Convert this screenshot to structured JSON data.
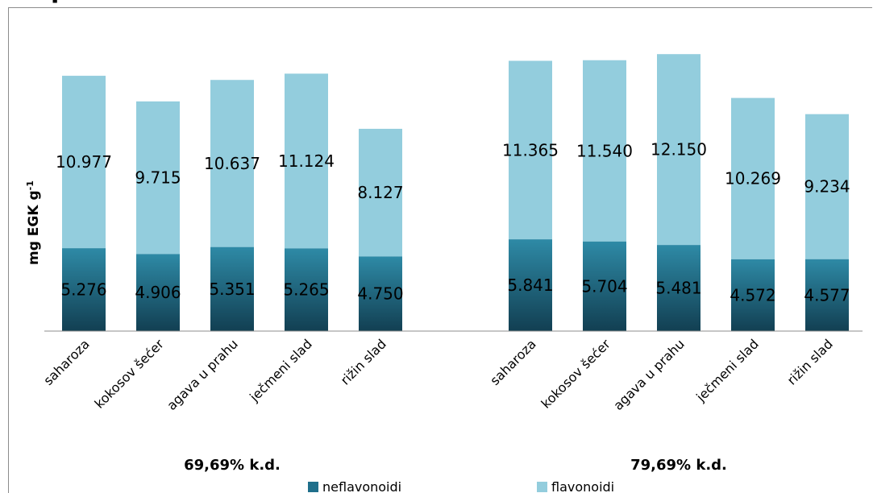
{
  "title_fragment": "p",
  "chart_data": {
    "type": "bar",
    "stacked": true,
    "ylabel": "mg EGK g",
    "ylabel_superscript": "-1",
    "groups": [
      {
        "label": "69,69% k.d.",
        "categories": [
          "saharoza",
          "kokosov šećer",
          "agava u prahu",
          "ječmeni slad",
          "rižin slad"
        ],
        "neflavonoidi": [
          5.276,
          4.906,
          5.351,
          5.265,
          4.75
        ],
        "flavonoidi": [
          10.977,
          9.715,
          10.637,
          11.124,
          8.127
        ]
      },
      {
        "label": "79,69% k.d.",
        "categories": [
          "saharoza",
          "kokosov šećer",
          "agava u prahu",
          "ječmeni slad",
          "rižin slad"
        ],
        "neflavonoidi": [
          5.841,
          5.704,
          5.481,
          4.572,
          4.577
        ],
        "flavonoidi": [
          11.365,
          11.54,
          12.15,
          10.269,
          9.234
        ]
      }
    ],
    "series": [
      {
        "name": "neflavonoidi",
        "color": "#1f6f8b"
      },
      {
        "name": "flavonoidi",
        "color": "#93cddd"
      }
    ],
    "value_labels_neflavonoidi": [
      [
        "5.276",
        "4.906",
        "5.351",
        "5.265",
        "4.750"
      ],
      [
        "5.841",
        "5.704",
        "5.481",
        "4.572",
        "4.577"
      ]
    ],
    "value_labels_flavonoidi": [
      [
        "10.977",
        "9.715",
        "10.637",
        "11.124",
        "8.127"
      ],
      [
        "11.365",
        "11.540",
        "12.150",
        "10.269",
        "9.234"
      ]
    ],
    "ylim": [
      0,
      18
    ],
    "grid": false,
    "legend_position": "bottom"
  }
}
